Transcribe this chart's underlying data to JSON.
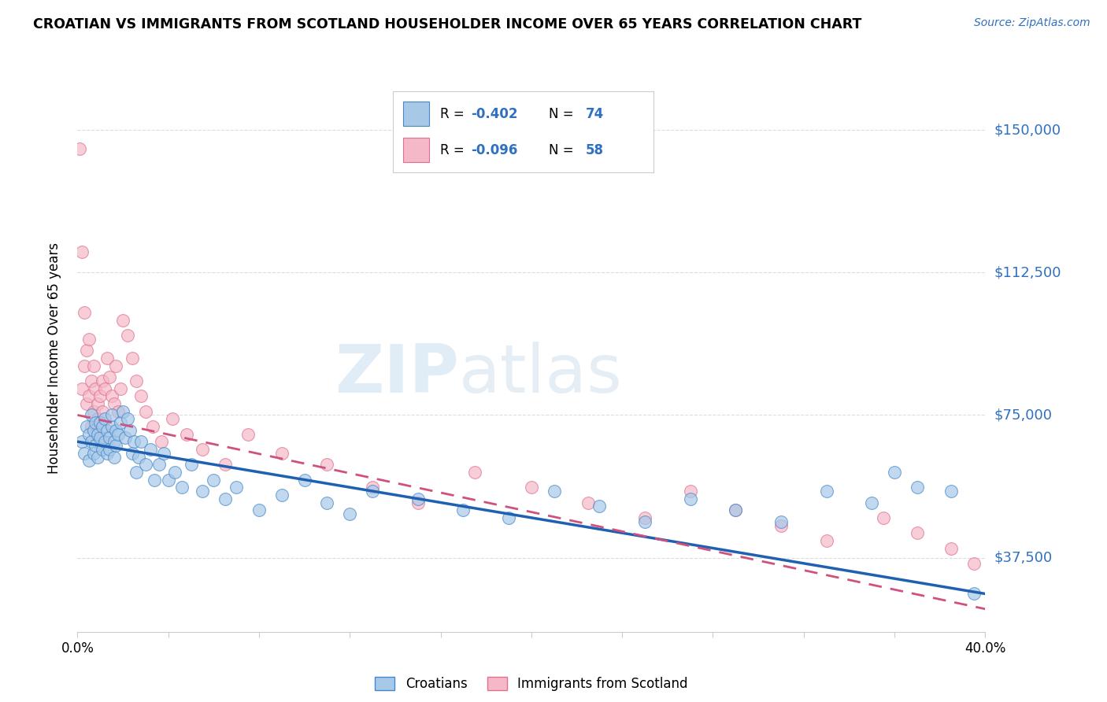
{
  "title": "CROATIAN VS IMMIGRANTS FROM SCOTLAND HOUSEHOLDER INCOME OVER 65 YEARS CORRELATION CHART",
  "source": "Source: ZipAtlas.com",
  "ylabel": "Householder Income Over 65 years",
  "xlim": [
    0.0,
    0.4
  ],
  "ylim": [
    18000,
    162000
  ],
  "yticks": [
    37500,
    75000,
    112500,
    150000
  ],
  "ytick_labels": [
    "$37,500",
    "$75,000",
    "$112,500",
    "$150,000"
  ],
  "blue_color": "#a8c8e8",
  "pink_color": "#f4b8c8",
  "blue_line_color": "#2060b0",
  "pink_line_color": "#d05080",
  "blue_scatter_edge": "#4488cc",
  "pink_scatter_edge": "#e07090",
  "croatians_x": [
    0.002,
    0.003,
    0.004,
    0.005,
    0.005,
    0.006,
    0.006,
    0.007,
    0.007,
    0.008,
    0.008,
    0.009,
    0.009,
    0.01,
    0.01,
    0.011,
    0.011,
    0.012,
    0.012,
    0.013,
    0.013,
    0.014,
    0.014,
    0.015,
    0.015,
    0.016,
    0.016,
    0.017,
    0.017,
    0.018,
    0.019,
    0.02,
    0.021,
    0.022,
    0.023,
    0.024,
    0.025,
    0.026,
    0.027,
    0.028,
    0.03,
    0.032,
    0.034,
    0.036,
    0.038,
    0.04,
    0.043,
    0.046,
    0.05,
    0.055,
    0.06,
    0.065,
    0.07,
    0.08,
    0.09,
    0.1,
    0.11,
    0.12,
    0.13,
    0.15,
    0.17,
    0.19,
    0.21,
    0.23,
    0.25,
    0.27,
    0.29,
    0.31,
    0.33,
    0.35,
    0.36,
    0.37,
    0.385,
    0.395
  ],
  "croatians_y": [
    68000,
    65000,
    72000,
    70000,
    63000,
    75000,
    68000,
    71000,
    65000,
    73000,
    67000,
    70000,
    64000,
    69000,
    73000,
    66000,
    72000,
    68000,
    74000,
    65000,
    71000,
    69000,
    66000,
    72000,
    75000,
    68000,
    64000,
    71000,
    67000,
    70000,
    73000,
    76000,
    69000,
    74000,
    71000,
    65000,
    68000,
    60000,
    64000,
    68000,
    62000,
    66000,
    58000,
    62000,
    65000,
    58000,
    60000,
    56000,
    62000,
    55000,
    58000,
    53000,
    56000,
    50000,
    54000,
    58000,
    52000,
    49000,
    55000,
    53000,
    50000,
    48000,
    55000,
    51000,
    47000,
    53000,
    50000,
    47000,
    55000,
    52000,
    60000,
    56000,
    55000,
    28000
  ],
  "scotland_x": [
    0.001,
    0.002,
    0.002,
    0.003,
    0.003,
    0.004,
    0.004,
    0.005,
    0.005,
    0.006,
    0.006,
    0.007,
    0.007,
    0.008,
    0.008,
    0.009,
    0.009,
    0.01,
    0.01,
    0.011,
    0.011,
    0.012,
    0.013,
    0.014,
    0.015,
    0.016,
    0.017,
    0.018,
    0.019,
    0.02,
    0.022,
    0.024,
    0.026,
    0.028,
    0.03,
    0.033,
    0.037,
    0.042,
    0.048,
    0.055,
    0.065,
    0.075,
    0.09,
    0.11,
    0.13,
    0.15,
    0.175,
    0.2,
    0.225,
    0.25,
    0.27,
    0.29,
    0.31,
    0.33,
    0.355,
    0.37,
    0.385,
    0.395
  ],
  "scotland_y": [
    145000,
    118000,
    82000,
    102000,
    88000,
    92000,
    78000,
    95000,
    80000,
    84000,
    72000,
    88000,
    76000,
    82000,
    70000,
    78000,
    74000,
    80000,
    68000,
    76000,
    84000,
    82000,
    90000,
    85000,
    80000,
    78000,
    88000,
    76000,
    82000,
    100000,
    96000,
    90000,
    84000,
    80000,
    76000,
    72000,
    68000,
    74000,
    70000,
    66000,
    62000,
    70000,
    65000,
    62000,
    56000,
    52000,
    60000,
    56000,
    52000,
    48000,
    55000,
    50000,
    46000,
    42000,
    48000,
    44000,
    40000,
    36000
  ],
  "cr_line_x0": 0.0,
  "cr_line_y0": 68000,
  "cr_line_x1": 0.4,
  "cr_line_y1": 28000,
  "sc_line_x0": 0.0,
  "sc_line_y0": 75000,
  "sc_line_x1": 0.4,
  "sc_line_y1": 24000,
  "grid_color": "#dddddd",
  "spine_color": "#cccccc"
}
